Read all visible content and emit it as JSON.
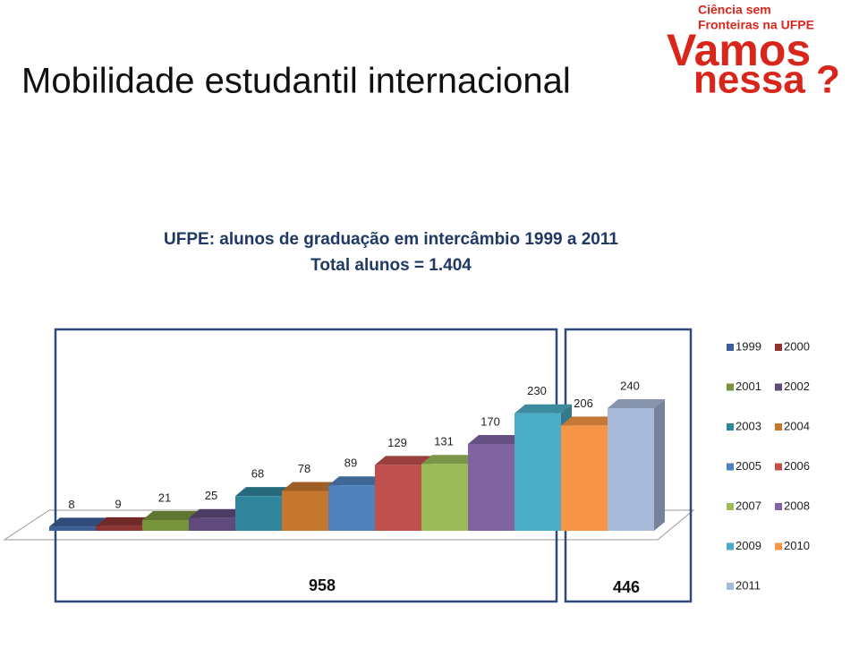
{
  "header": {
    "title": "Mobilidade estudantil internacional",
    "logo_line1": "Ciência sem",
    "logo_line2": "Fronteiras na UFPE",
    "logo_line3": "Vamos",
    "logo_line4": "nessa ?"
  },
  "chart_data": {
    "type": "bar",
    "title": "UFPE: alunos de graduação em intercâmbio 1999 a 2011",
    "subtitle": "Total alunos = 1.404",
    "series": [
      {
        "name": "1999",
        "color": "#3d5f99",
        "values": [
          8
        ]
      },
      {
        "name": "2000",
        "color": "#8e3533",
        "values": [
          9
        ]
      },
      {
        "name": "2001",
        "color": "#77933c",
        "values": [
          21
        ]
      },
      {
        "name": "2002",
        "color": "#5f4a7b",
        "values": [
          25
        ]
      },
      {
        "name": "2003",
        "color": "#31859c",
        "values": [
          68
        ]
      },
      {
        "name": "2004",
        "color": "#c5762f",
        "values": [
          78
        ]
      },
      {
        "name": "2005",
        "color": "#4f81bd",
        "values": [
          89
        ]
      },
      {
        "name": "2006",
        "color": "#c0504d",
        "values": [
          129
        ]
      },
      {
        "name": "2007",
        "color": "#9bbb59",
        "values": [
          131
        ]
      },
      {
        "name": "2008",
        "color": "#8064a2",
        "values": [
          170
        ]
      },
      {
        "name": "2009",
        "color": "#4bacc6",
        "values": [
          230
        ]
      },
      {
        "name": "2010",
        "color": "#f79646",
        "values": [
          206
        ]
      },
      {
        "name": "2011",
        "color": "#a9b9da",
        "values": [
          240
        ]
      }
    ],
    "annotations": [
      958,
      446
    ]
  }
}
